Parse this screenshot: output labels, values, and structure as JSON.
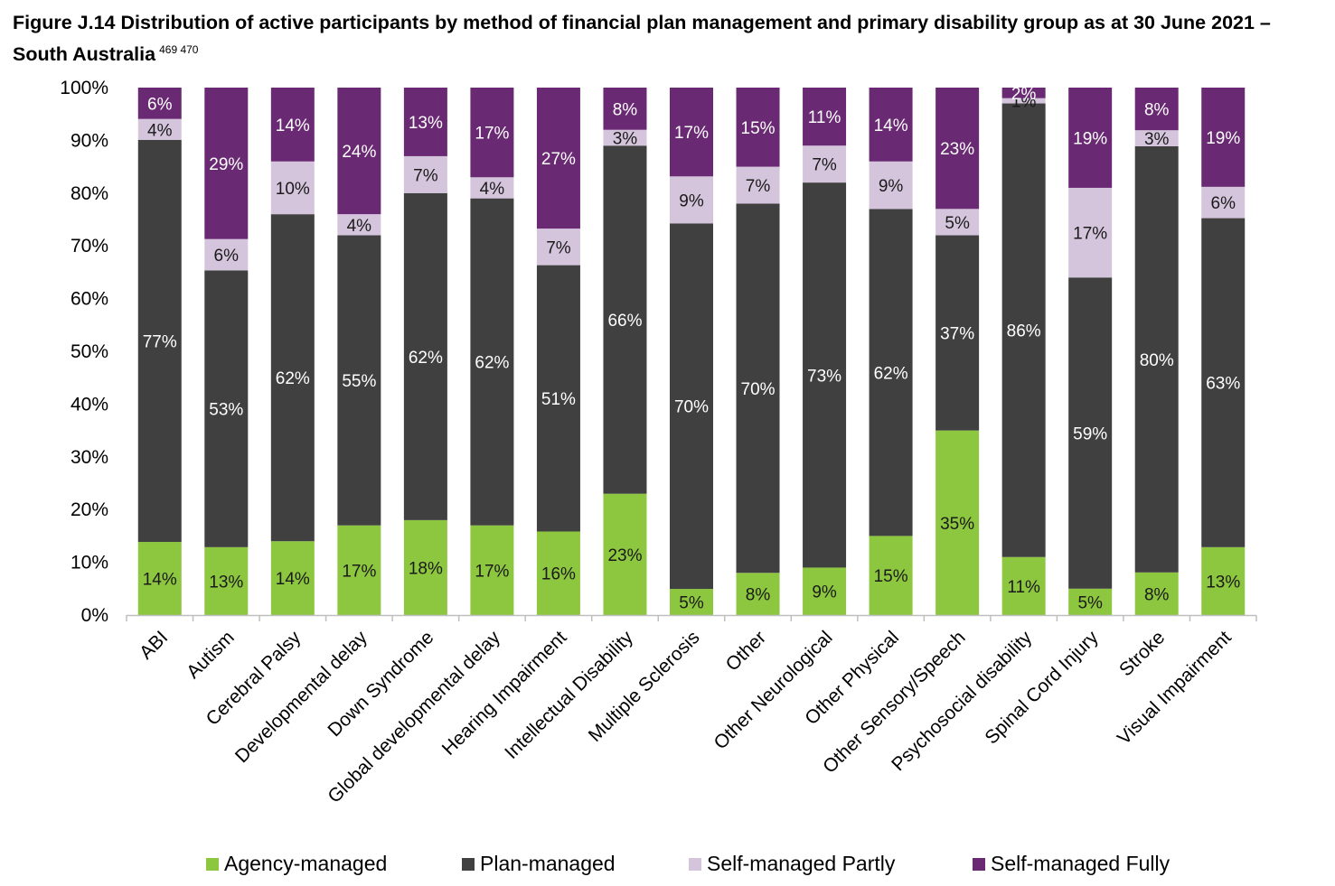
{
  "title": "Figure J.14 Distribution of active participants by method of financial plan management and primary disability group as at 30 June 2021 – South Australia",
  "title_footnotes": "469 470",
  "chart_data": {
    "type": "bar",
    "stacked": true,
    "title": "Figure J.14 Distribution of active participants by method of financial plan management and primary disability group as at 30 June 2021 – South Australia",
    "xlabel": "",
    "ylabel": "",
    "ylim": [
      0,
      100
    ],
    "y_ticks": [
      "0%",
      "10%",
      "20%",
      "30%",
      "40%",
      "50%",
      "60%",
      "70%",
      "80%",
      "90%",
      "100%"
    ],
    "grid": false,
    "legend_position": "bottom",
    "categories": [
      "ABI",
      "Autism",
      "Cerebral Palsy",
      "Developmental delay",
      "Down Syndrome",
      "Global developmental delay",
      "Hearing Impairment",
      "Intellectual Disability",
      "Multiple Sclerosis",
      "Other",
      "Other Neurological",
      "Other Physical",
      "Other Sensory/Speech",
      "Psychosocial disability",
      "Spinal Cord Injury",
      "Stroke",
      "Visual Impairment"
    ],
    "series": [
      {
        "name": "Agency-managed",
        "color": "#8dc63f",
        "label_color": "#1a1a1a",
        "values": [
          14,
          13,
          14,
          17,
          18,
          17,
          16,
          23,
          5,
          8,
          9,
          15,
          35,
          11,
          5,
          8,
          13
        ]
      },
      {
        "name": "Plan-managed",
        "color": "#404040",
        "label_color": "#ffffff",
        "values": [
          77,
          53,
          62,
          55,
          62,
          62,
          51,
          66,
          70,
          70,
          73,
          62,
          37,
          86,
          59,
          80,
          63
        ]
      },
      {
        "name": "Self-managed Partly",
        "color": "#d5c5dc",
        "label_color": "#1a1a1a",
        "values": [
          4,
          6,
          10,
          4,
          7,
          4,
          7,
          3,
          9,
          7,
          7,
          9,
          5,
          1,
          17,
          3,
          6
        ]
      },
      {
        "name": "Self-managed Fully",
        "color": "#6a2a73",
        "label_color": "#ffffff",
        "values": [
          6,
          29,
          14,
          24,
          13,
          17,
          27,
          8,
          17,
          15,
          11,
          14,
          23,
          2,
          19,
          8,
          19
        ]
      }
    ]
  }
}
